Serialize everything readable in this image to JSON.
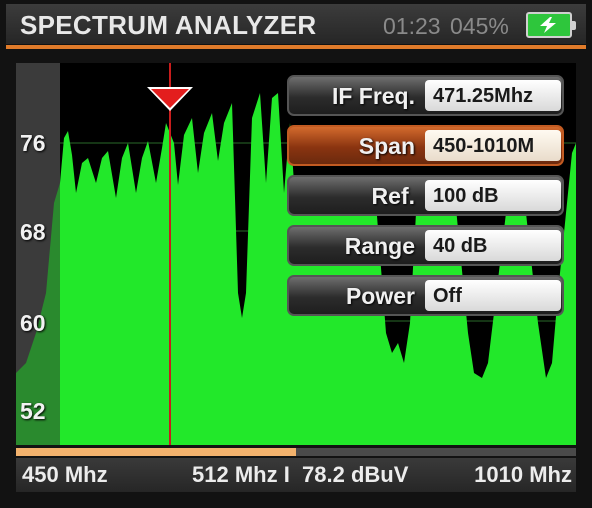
{
  "header": {
    "title": "SPECTRUM ANALYZER",
    "time": "01:23",
    "battery_percent": "045%",
    "battery_icon": "battery-charging-icon"
  },
  "plot": {
    "y_tick_labels": [
      "76",
      "68",
      "60",
      "52"
    ],
    "trace_color": "#22e82a",
    "marker_color": "#e31d1d"
  },
  "params": [
    {
      "label": "IF Freq.",
      "value": "471.25Mhz",
      "active": false
    },
    {
      "label": "Span",
      "value": "450-1010M",
      "active": true
    },
    {
      "label": "Ref.",
      "value": "100 dB",
      "active": false
    },
    {
      "label": "Range",
      "value": "40 dB",
      "active": false
    },
    {
      "label": "Power",
      "value": "Off",
      "active": false
    }
  ],
  "scroll": {
    "position_fraction": 0.5
  },
  "status": {
    "start_freq": "450 Mhz",
    "marker_readout": "512 Mhz I  78.2 dBuV",
    "end_freq": "1010 Mhz"
  },
  "colors": {
    "accent": "#e07b2a",
    "header_bg": "#2e2e2e"
  }
}
